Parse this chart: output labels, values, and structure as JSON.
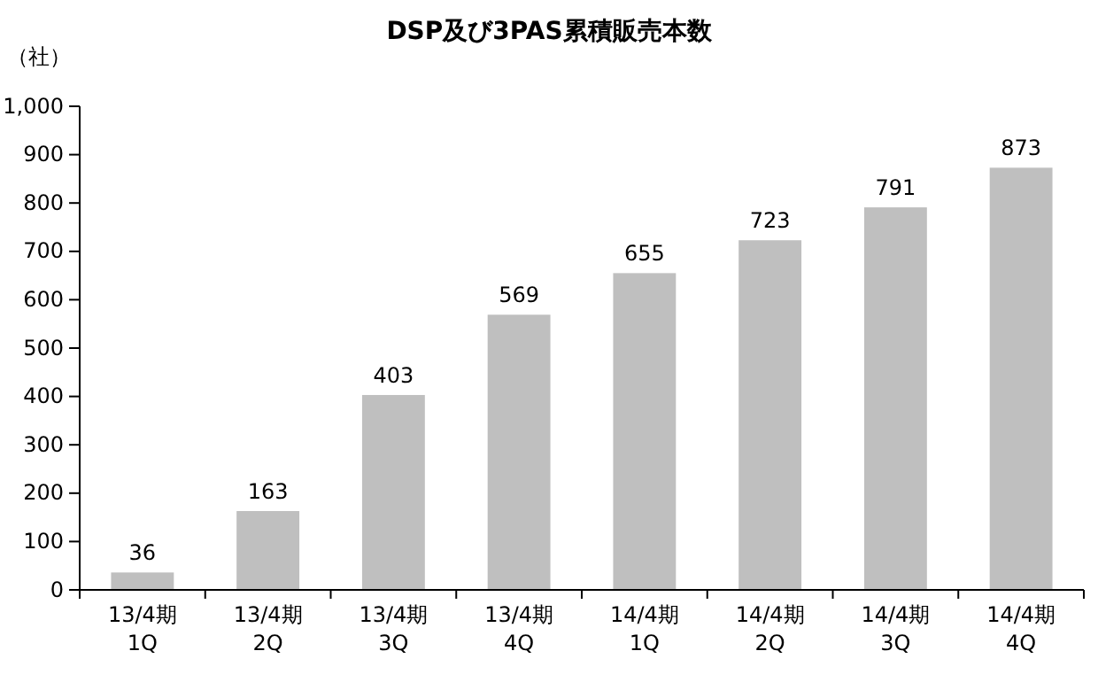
{
  "chart_data": {
    "type": "bar",
    "title": "DSP及び3PAS累積販売本数",
    "ylabel": "（社）",
    "categories": [
      "13/4期\n1Q",
      "13/4期\n2Q",
      "13/4期\n3Q",
      "13/4期\n4Q",
      "14/4期\n1Q",
      "14/4期\n2Q",
      "14/4期\n3Q",
      "14/4期\n4Q"
    ],
    "values": [
      36,
      163,
      403,
      569,
      655,
      723,
      791,
      873
    ],
    "color": "#bfbfbf",
    "ylim": [
      0,
      1000
    ],
    "yticks": [
      0,
      {
        "value": 100,
        "label": "100"
      },
      {
        "value": 200,
        "label": "200"
      },
      {
        "value": 300,
        "label": "300"
      },
      {
        "value": 400,
        "label": "400"
      },
      {
        "value": 500,
        "label": "500"
      },
      {
        "value": 600,
        "label": "600"
      },
      {
        "value": 700,
        "label": "700"
      },
      {
        "value": 800,
        "label": "800"
      },
      {
        "value": 900,
        "label": "900"
      },
      {
        "value": 1000,
        "label": "1,000"
      }
    ],
    "data_labels": true,
    "grid": false
  }
}
